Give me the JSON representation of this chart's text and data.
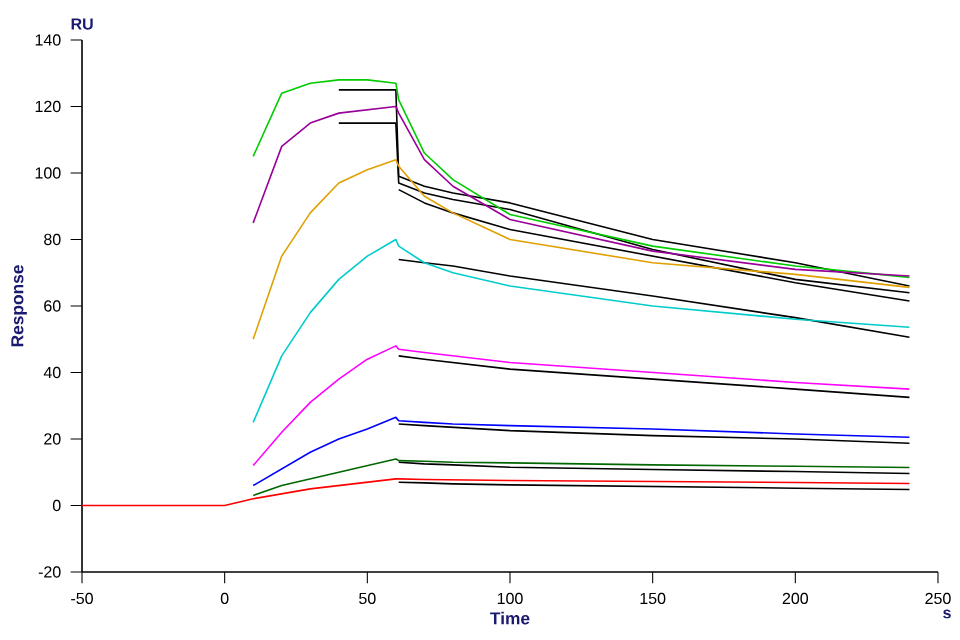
{
  "chart_data": {
    "type": "line",
    "xlabel": "Time",
    "ylabel": "Response",
    "annotations": [
      "RU",
      "s"
    ],
    "x": [
      10,
      20,
      30,
      40,
      50,
      60,
      61,
      70,
      80,
      100,
      150,
      200,
      240
    ],
    "xlim": [
      -50,
      250
    ],
    "xticks": [
      -50,
      0,
      50,
      100,
      150,
      200,
      250
    ],
    "ylim": [
      -20,
      140
    ],
    "yticks": [
      -20,
      0,
      20,
      40,
      60,
      80,
      100,
      120,
      140
    ],
    "grid": false,
    "marker": "none",
    "line_style": "solid",
    "series": [
      {
        "color": "#000000",
        "x": [
          40,
          50,
          60,
          61,
          70,
          80,
          100,
          150,
          200,
          240
        ],
        "values": [
          125,
          125,
          125,
          99,
          96,
          94,
          91,
          80,
          73,
          66
        ]
      },
      {
        "color": "#000000",
        "x": [
          40,
          50,
          60,
          61,
          70,
          80,
          100,
          150,
          200,
          240
        ],
        "values": [
          115,
          115,
          115,
          97,
          94,
          92,
          89,
          77,
          68,
          64
        ]
      },
      {
        "color": "#000000",
        "x": [
          61,
          70,
          80,
          100,
          150,
          200,
          240
        ],
        "values": [
          95,
          91,
          88,
          83,
          75,
          67,
          61.5
        ]
      },
      {
        "color": "#000000",
        "x": [
          61,
          70,
          80,
          100,
          150,
          200,
          240
        ],
        "values": [
          74,
          73,
          72,
          69,
          63,
          56.5,
          50.6
        ]
      },
      {
        "color": "#000000",
        "x": [
          61,
          70,
          80,
          100,
          150,
          200,
          240
        ],
        "values": [
          45,
          44,
          43,
          41,
          38,
          35,
          32.5
        ]
      },
      {
        "color": "#000000",
        "x": [
          61,
          70,
          80,
          100,
          150,
          200,
          240
        ],
        "values": [
          24.5,
          24,
          23.5,
          22.5,
          21,
          20,
          18.7
        ]
      },
      {
        "color": "#000000",
        "x": [
          61,
          70,
          80,
          100,
          150,
          200,
          240
        ],
        "values": [
          13,
          12.5,
          12.2,
          11.5,
          10.8,
          10.2,
          9.6
        ]
      },
      {
        "color": "#000000",
        "x": [
          61,
          70,
          80,
          100,
          150,
          200,
          240
        ],
        "values": [
          7,
          6.8,
          6.5,
          6.2,
          5.7,
          5.2,
          4.8
        ]
      },
      {
        "color": "#00cc00",
        "values": [
          105,
          124,
          127,
          128,
          128,
          127,
          122,
          106,
          98,
          87.5,
          78,
          72,
          68.6
        ]
      },
      {
        "color": "#990099",
        "values": [
          85,
          108,
          115,
          118,
          119,
          120,
          118,
          104,
          96,
          86,
          76.5,
          71,
          69
        ]
      },
      {
        "color": "#e0a000",
        "values": [
          50,
          75,
          88,
          97,
          101,
          104,
          102,
          93,
          88,
          80,
          73,
          69.5,
          65.6
        ]
      },
      {
        "color": "#00cccc",
        "values": [
          25,
          45,
          58,
          68,
          75,
          80,
          78,
          73,
          70,
          66,
          60,
          56,
          53.6
        ]
      },
      {
        "color": "#ff00ff",
        "values": [
          12,
          22,
          31,
          38,
          44,
          48,
          47,
          46,
          45,
          43,
          40,
          37,
          35
        ]
      },
      {
        "color": "#0000ff",
        "values": [
          6,
          11,
          16,
          20,
          23,
          26.5,
          25.5,
          25,
          24.5,
          24,
          23,
          21.5,
          20.5
        ]
      },
      {
        "color": "#006600",
        "values": [
          3,
          6,
          8,
          10,
          12,
          14,
          13.5,
          13.3,
          13,
          12.8,
          12.2,
          11.8,
          11.4
        ]
      },
      {
        "color": "#ff0000",
        "x": [
          -50,
          0,
          10,
          20,
          30,
          40,
          50,
          60,
          61,
          70,
          80,
          100,
          150,
          200,
          240
        ],
        "values": [
          0,
          0,
          2,
          3.5,
          5,
          6,
          7,
          8,
          8,
          7.8,
          7.7,
          7.5,
          7.2,
          6.9,
          6.6
        ]
      }
    ]
  }
}
